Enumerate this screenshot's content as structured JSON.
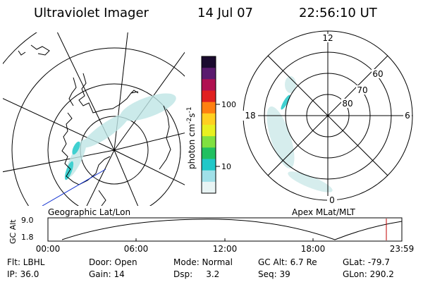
{
  "header": {
    "title": "Ultraviolet Imager",
    "date": "14 Jul 07",
    "time": "22:56:10 UT"
  },
  "panels": {
    "left_label": "Geographic Lat/Lon",
    "right_label": "Apex MLat/MLT"
  },
  "colorbar": {
    "label_prefix": "photon cm",
    "exp1": "-2",
    "mid": "s",
    "exp2": "-1",
    "ticks": [
      "100",
      "10"
    ],
    "colors": [
      "#1a0a2e",
      "#5a1a6e",
      "#b01050",
      "#e02020",
      "#ff8010",
      "#ffd020",
      "#e8f020",
      "#80e040",
      "#20c060",
      "#20c8c8",
      "#a0e0e8",
      "#e8f4f4"
    ]
  },
  "polar": {
    "lat_labels": [
      "80",
      "70",
      "60"
    ],
    "mlt_labels": {
      "top": "12",
      "left": "18",
      "right": "6",
      "bottom": "0"
    }
  },
  "altitude_plot": {
    "ylabel": "GC Alt",
    "yticks": [
      "9.0",
      "1.8"
    ],
    "xticks": [
      "00:00",
      "06:00",
      "12:00",
      "18:00",
      "23:59"
    ],
    "marker_color": "#c00000"
  },
  "info": {
    "filter": "Flt: LBHL",
    "ip": "IP: 36.0",
    "door": "Door: Open",
    "gain": "Gain: 14",
    "mode": "Mode: Normal",
    "dsp": "Dsp:     3.2",
    "gc_alt": "GC Alt: 6.7 Re",
    "seq": "Seq: 39",
    "glat": "GLat: -79.7",
    "glon": "GLon: 290.2"
  }
}
